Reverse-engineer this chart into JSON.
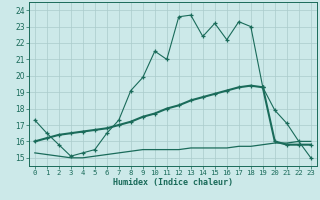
{
  "xlabel": "Humidex (Indice chaleur)",
  "xlim": [
    -0.5,
    23.5
  ],
  "ylim": [
    14.5,
    24.5
  ],
  "xticks": [
    0,
    1,
    2,
    3,
    4,
    5,
    6,
    7,
    8,
    9,
    10,
    11,
    12,
    13,
    14,
    15,
    16,
    17,
    18,
    19,
    20,
    21,
    22,
    23
  ],
  "yticks": [
    15,
    16,
    17,
    18,
    19,
    20,
    21,
    22,
    23,
    24
  ],
  "bg_color": "#cce9e9",
  "grid_color": "#aacccc",
  "line_color": "#1a6b5a",
  "line1_x": [
    0,
    1,
    2,
    3,
    4,
    5,
    6,
    7,
    8,
    9,
    10,
    11,
    12,
    13,
    14,
    15,
    16,
    17,
    18,
    19,
    20,
    21,
    22,
    23
  ],
  "line1_y": [
    17.3,
    16.5,
    15.8,
    15.1,
    15.3,
    15.5,
    16.5,
    17.3,
    19.1,
    19.9,
    21.5,
    21.0,
    23.6,
    23.7,
    22.4,
    23.2,
    22.2,
    23.3,
    23.0,
    19.3,
    17.9,
    17.1,
    16.0,
    15.0
  ],
  "line2_x": [
    0,
    1,
    2,
    3,
    4,
    5,
    6,
    7,
    8,
    9,
    10,
    11,
    12,
    13,
    14,
    15,
    16,
    17,
    18,
    19,
    20,
    21,
    22,
    23
  ],
  "line2_y": [
    16.0,
    16.2,
    16.4,
    16.5,
    16.6,
    16.7,
    16.8,
    17.0,
    17.2,
    17.5,
    17.7,
    18.0,
    18.2,
    18.5,
    18.7,
    18.9,
    19.1,
    19.3,
    19.4,
    19.3,
    16.0,
    15.8,
    15.8,
    15.8
  ],
  "line3_x": [
    0,
    1,
    2,
    3,
    4,
    5,
    6,
    7,
    8,
    9,
    10,
    11,
    12,
    13,
    14,
    15,
    16,
    17,
    18,
    19,
    20,
    21,
    22,
    23
  ],
  "line3_y": [
    15.3,
    15.2,
    15.1,
    15.0,
    15.0,
    15.1,
    15.2,
    15.3,
    15.4,
    15.5,
    15.5,
    15.5,
    15.5,
    15.6,
    15.6,
    15.6,
    15.6,
    15.7,
    15.7,
    15.8,
    15.9,
    15.9,
    16.0,
    16.0
  ]
}
